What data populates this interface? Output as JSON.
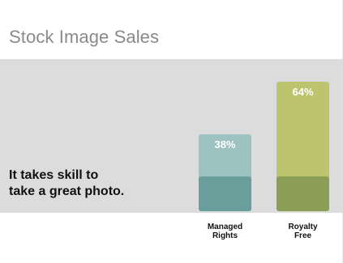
{
  "slide": {
    "title": "Stock Image Sales",
    "tagline": [
      "It takes skill to",
      "take a great photo."
    ]
  },
  "chart_data": {
    "type": "bar",
    "categories": [
      [
        "Managed",
        "Rights"
      ],
      [
        "Royalty",
        "Free"
      ]
    ],
    "values": [
      38,
      64
    ],
    "value_labels": [
      "38%",
      "64%"
    ],
    "ylim": [
      0,
      100
    ],
    "colors": {
      "bar_top": [
        "#9cc3c1",
        "#bcc46d"
      ],
      "bar_base": [
        "#6a9e9a",
        "#8a9e55"
      ],
      "band": "#dcdcdc"
    }
  }
}
